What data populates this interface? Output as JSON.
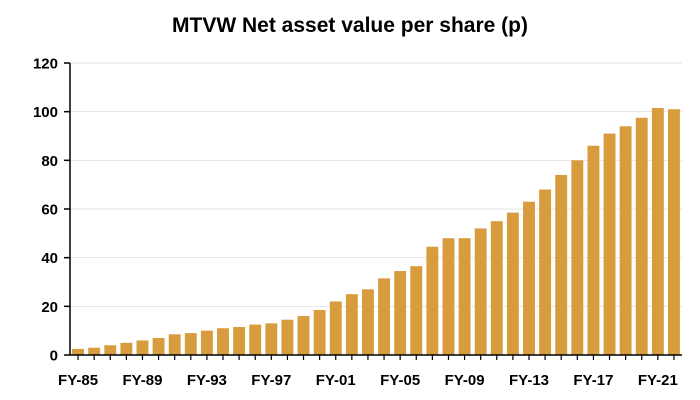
{
  "chart_data": {
    "type": "bar",
    "title": "MTVW Net asset value per share (p)",
    "xlabel": "",
    "ylabel": "",
    "categories": [
      "FY-85",
      "FY-86",
      "FY-87",
      "FY-88",
      "FY-89",
      "FY-90",
      "FY-91",
      "FY-92",
      "FY-93",
      "FY-94",
      "FY-95",
      "FY-96",
      "FY-97",
      "FY-98",
      "FY-99",
      "FY-00",
      "FY-01",
      "FY-02",
      "FY-03",
      "FY-04",
      "FY-05",
      "FY-06",
      "FY-07",
      "FY-08",
      "FY-09",
      "FY-10",
      "FY-11",
      "FY-12",
      "FY-13",
      "FY-14",
      "FY-15",
      "FY-16",
      "FY-17",
      "FY-18",
      "FY-19",
      "FY-20",
      "FY-21",
      "FY-22"
    ],
    "values": [
      2.5,
      3,
      4,
      5,
      6,
      7,
      8.5,
      9,
      10,
      11,
      11.5,
      12.5,
      13,
      14.5,
      16,
      18.5,
      22,
      25,
      27,
      31.5,
      34.5,
      36.5,
      44.5,
      48,
      48,
      52,
      55,
      58.5,
      63,
      68,
      74,
      80,
      86,
      91,
      94,
      97.5,
      101.5,
      101
    ],
    "x_tick_labels": [
      "FY-85",
      "FY-89",
      "FY-93",
      "FY-97",
      "FY-01",
      "FY-05",
      "FY-09",
      "FY-13",
      "FY-17",
      "FY-21"
    ],
    "y_ticks": [
      0,
      20,
      40,
      60,
      80,
      100,
      120
    ],
    "ylim": [
      0,
      120
    ],
    "grid": true,
    "legend": "none",
    "colors": {
      "bar": "#D89C3F",
      "grid": "#E4E4E4",
      "axis": "#000000"
    }
  }
}
